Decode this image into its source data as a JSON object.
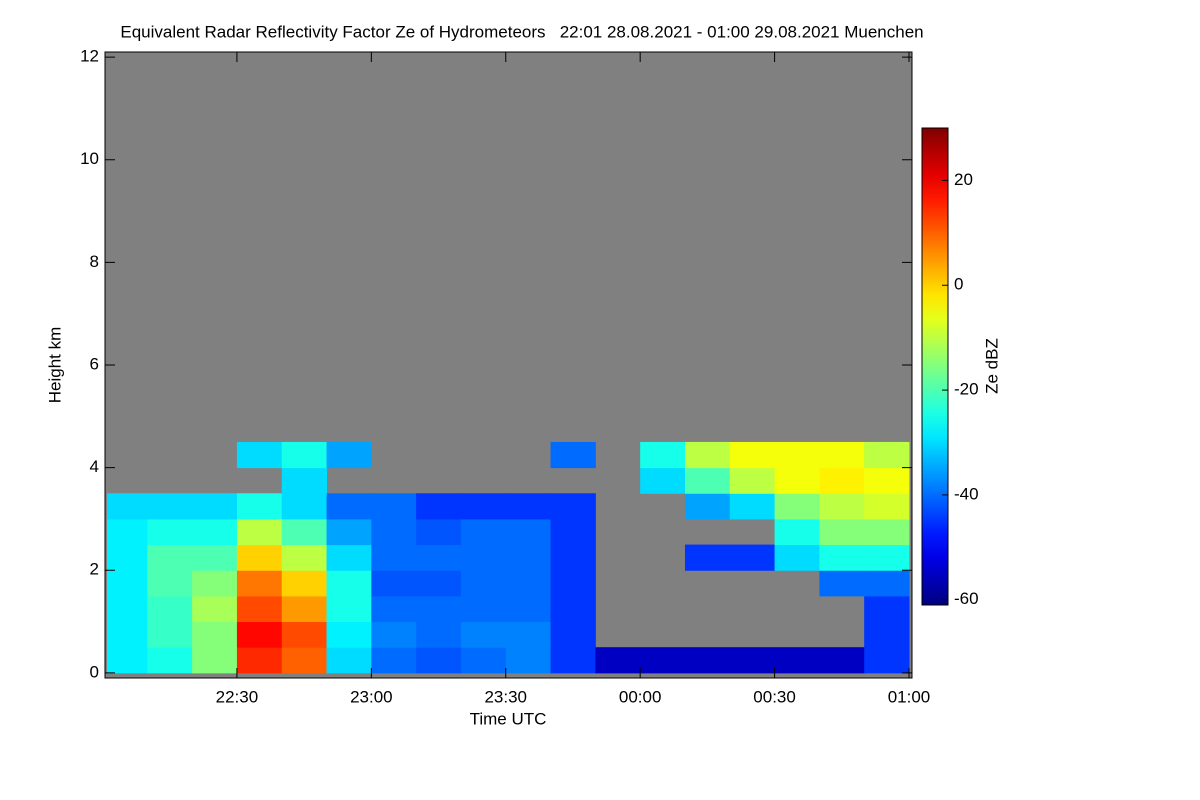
{
  "chart_data": {
    "type": "heatmap",
    "title": "Equivalent Radar Reflectivity Factor Ze of Hydrometeors   22:01 28.08.2021 - 01:00 29.08.2021 Muenchen",
    "x_label": "Time UTC",
    "y_label": "Height km",
    "colorbar_label": "Ze dBZ",
    "xbins": [
      22.0167,
      22.1667,
      22.3333,
      22.5,
      22.6667,
      22.8333,
      23,
      23.1667,
      23.3333,
      23.5,
      23.6667,
      23.8333,
      24,
      24.1667,
      24.3333,
      24.5,
      24.6667,
      24.8333,
      25
    ],
    "ybins": [
      0,
      0.5,
      1,
      1.5,
      2,
      2.5,
      3,
      3.5,
      4,
      4.5
    ],
    "z": [
      [
        -28,
        -25,
        -15,
        15,
        10,
        -30,
        -40,
        -42,
        -40,
        -38,
        -45,
        -55,
        -55,
        -55,
        -55,
        -55,
        -55,
        -45
      ],
      [
        -28,
        -22,
        -15,
        18,
        12,
        -28,
        -38,
        -40,
        -38,
        -38,
        -45,
        null,
        null,
        null,
        null,
        null,
        null,
        -45
      ],
      [
        -28,
        -22,
        -12,
        12,
        5,
        -25,
        -40,
        -40,
        -40,
        -40,
        -45,
        null,
        null,
        null,
        null,
        null,
        null,
        -45
      ],
      [
        -28,
        -20,
        -15,
        8,
        0,
        -25,
        -42,
        -42,
        -40,
        -40,
        -45,
        null,
        null,
        null,
        null,
        null,
        -40,
        -40
      ],
      [
        -28,
        -20,
        -20,
        0,
        -10,
        -30,
        -40,
        -40,
        -40,
        -40,
        -45,
        null,
        null,
        -45,
        -45,
        -30,
        -25,
        -25
      ],
      [
        -28,
        -25,
        -25,
        -10,
        -20,
        -35,
        -40,
        -42,
        -40,
        -40,
        -45,
        null,
        null,
        null,
        null,
        -25,
        -15,
        -15
      ],
      [
        -30,
        -30,
        -30,
        -25,
        -30,
        -40,
        -40,
        -45,
        -45,
        -45,
        -45,
        null,
        null,
        -35,
        -30,
        -15,
        -10,
        -8
      ],
      [
        null,
        null,
        null,
        null,
        -30,
        null,
        null,
        null,
        null,
        null,
        null,
        null,
        -30,
        -20,
        -10,
        -5,
        -3,
        -5
      ],
      [
        null,
        null,
        null,
        -30,
        -25,
        -35,
        null,
        null,
        null,
        null,
        -40,
        null,
        -25,
        -10,
        -5,
        -5,
        -5,
        -10
      ]
    ],
    "xlim": [
      22.0167,
      25
    ],
    "xticks": [
      {
        "value": 22.5,
        "label": "22:30"
      },
      {
        "value": 23,
        "label": "23:00"
      },
      {
        "value": 23.5,
        "label": "23:30"
      },
      {
        "value": 24,
        "label": "00:00"
      },
      {
        "value": 24.5,
        "label": "00:30"
      },
      {
        "value": 25,
        "label": "01:00"
      }
    ],
    "ylim": [
      -0.1,
      12.1
    ],
    "yticks": [
      0,
      2,
      4,
      6,
      8,
      10,
      12
    ],
    "clim": [
      -61,
      30
    ],
    "cticks": [
      -60,
      -40,
      -20,
      0,
      20
    ],
    "colormap": "jet",
    "background_color": "#808080"
  }
}
